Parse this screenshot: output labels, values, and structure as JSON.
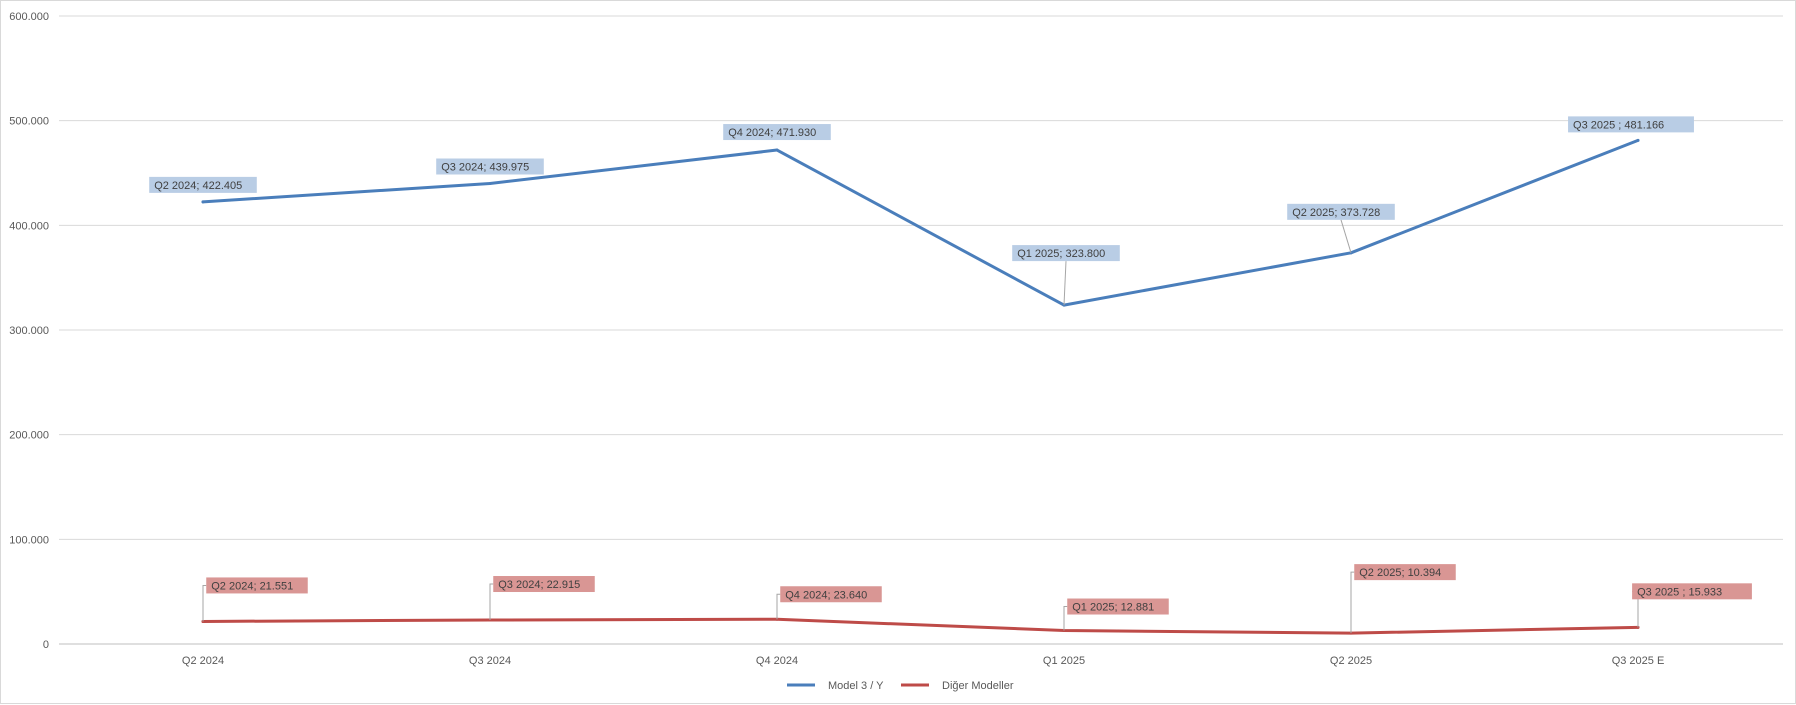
{
  "chart_data": {
    "type": "line",
    "title": "",
    "xlabel": "",
    "ylabel": "",
    "categories": [
      "Q2 2024",
      "Q3 2024",
      "Q4 2024",
      "Q1 2025",
      "Q2 2025",
      "Q3 2025 E"
    ],
    "yticks": [
      "0",
      "100.000",
      "200.000",
      "300.000",
      "400.000",
      "500.000",
      "600.000"
    ],
    "ylim": [
      0,
      600000
    ],
    "grid": true,
    "legend_position": "bottom",
    "series": [
      {
        "name": "Model 3 / Y",
        "color": "#4a7ebb",
        "label_bg": "#b9cde5",
        "values": [
          422405,
          439975,
          471930,
          323800,
          373728,
          481166
        ],
        "labels": [
          "Q2 2024; 422.405",
          "Q3 2024; 439.975",
          "Q4 2024; 471.930",
          "Q1 2025; 323.800",
          "Q2 2025; 373.728",
          "Q3 2025   ; 481.166"
        ]
      },
      {
        "name": "Diğer Modeller",
        "color": "#be4b48",
        "label_bg": "#d99694",
        "values": [
          21551,
          22915,
          23640,
          12881,
          10394,
          15933
        ],
        "labels": [
          "Q2 2024; 21.551",
          "Q3 2024; 22.915",
          "Q4 2024; 23.640",
          "Q1 2025; 12.881",
          "Q2 2025; 10.394",
          "Q3 2025   ; 15.933"
        ]
      }
    ]
  }
}
